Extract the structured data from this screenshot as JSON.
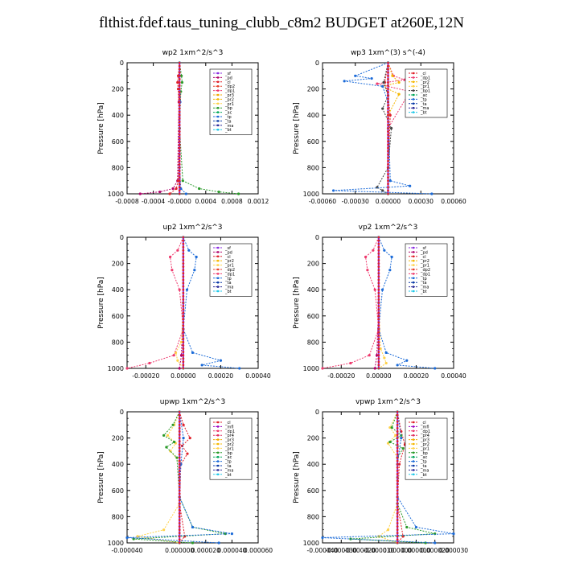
{
  "page": {
    "title": "flthist.fdef.taus_tuning_clubb_c8m2  BUDGET at260E,12N"
  },
  "colors": {
    "_sf": "#8a2be2",
    "_pd": "#b0006a",
    "_cl": "#e0202a",
    "_dp2": "#e8402a",
    "_dp1": "#ee3a6e",
    "_pr3": "#f2a800",
    "_pr2": "#f5b800",
    "_pr1": "#ffd24a",
    "_bp": "#2a9a2a",
    "_ac": "#00a85a",
    "_tp": "#1a6ad8",
    "_ta": "#0a3aa8",
    "_ma": "#2a2a9a",
    "_bt": "#20c8e8",
    "_mfl": "#9a00c0",
    "_pr4": "#e03060"
  },
  "chart_data": [
    {
      "type": "line",
      "title": "wp2  1xm^2/s^3",
      "ylabel": "Pressure  [hPa]",
      "ylim": [
        1000,
        0
      ],
      "y_ticks": [
        "0",
        "200",
        "400",
        "600",
        "800",
        "1000"
      ],
      "x_tick_labels": [
        "-0.0008",
        "-0.0004",
        "-0.0000",
        "0.0004",
        "0.0008",
        "0.0012"
      ],
      "xlim": [
        -0.0008,
        0.0012
      ],
      "x_ticks": [
        -0.0008,
        -0.0004,
        0.0,
        0.0004,
        0.0008,
        0.0012
      ],
      "legend": [
        "_sf",
        "_pd",
        "_cl",
        "_dp2",
        "_dp1",
        "_pr3",
        "_pr2",
        "_pr1",
        "_bp",
        "_ac",
        "_tp",
        "_ta",
        "_ma",
        "_bt"
      ],
      "series": [
        {
          "name": "_pd",
          "x": [
            0,
            -1e-05,
            -3e-05,
            -0.0001,
            -0.0003,
            -0.0006
          ],
          "y": [
            0,
            300,
            900,
            960,
            985,
            1000
          ]
        },
        {
          "name": "_cl",
          "x": [
            0,
            -2e-05,
            -3e-05,
            -2e-05,
            0,
            -2e-05,
            -5e-05,
            -0.00015
          ],
          "y": [
            0,
            100,
            150,
            200,
            500,
            900,
            960,
            1000
          ]
        },
        {
          "name": "_bp",
          "x": [
            0,
            3e-05,
            4e-05,
            2e-05,
            0,
            5e-05,
            0.0003,
            0.0006,
            0.0009
          ],
          "y": [
            0,
            100,
            150,
            220,
            500,
            900,
            960,
            985,
            1000
          ]
        },
        {
          "name": "_tp",
          "x": [
            0,
            1e-05,
            0,
            2e-05,
            0.0001
          ],
          "y": [
            0,
            300,
            800,
            960,
            1000
          ]
        },
        {
          "name": "_bt",
          "x": [
            0,
            0,
            0
          ],
          "y": [
            0,
            500,
            1000
          ]
        }
      ]
    },
    {
      "type": "line",
      "title": "wp3  1xm^(3) s^(-4)",
      "ylabel": "Pressure  [hPa]",
      "ylim": [
        1000,
        0
      ],
      "y_ticks": [
        "0",
        "200",
        "400",
        "600",
        "800",
        "1000"
      ],
      "x_tick_labels": [
        "-0.00060",
        "-0.00030",
        "0.00000",
        "0.00030",
        "0.00060"
      ],
      "xlim": [
        -0.0006,
        0.0006
      ],
      "x_ticks": [
        -0.0006,
        -0.0003,
        0.0,
        0.0003,
        0.0006
      ],
      "legend": [
        "_cl",
        "_dp1",
        "_pr2",
        "_pr1",
        "_bp1",
        "_ac",
        "_tp",
        "_ta",
        "_ma",
        "_bt"
      ],
      "series": [
        {
          "name": "_cl",
          "x": [
            0,
            -3e-05,
            0,
            2e-05,
            0,
            0
          ],
          "y": [
            0,
            150,
            250,
            400,
            800,
            1000
          ]
        },
        {
          "name": "_dp1",
          "x": [
            0,
            5e-05,
            0.00015,
            -0.0001,
            0.0002,
            0,
            0
          ],
          "y": [
            0,
            100,
            130,
            160,
            220,
            500,
            1000
          ]
        },
        {
          "name": "_pr2",
          "x": [
            0,
            4e-05,
            0.0001,
            -5e-05,
            0.0001,
            0,
            0
          ],
          "y": [
            0,
            100,
            150,
            180,
            240,
            400,
            1000
          ]
        },
        {
          "name": "_bp1",
          "x": [
            0,
            -4e-05,
            0,
            -5e-05,
            3e-05,
            0,
            -0.0001,
            -5e-05,
            0
          ],
          "y": [
            0,
            150,
            250,
            350,
            500,
            800,
            950,
            975,
            1000
          ]
        },
        {
          "name": "_tp",
          "x": [
            0,
            -0.0003,
            -0.00015,
            -0.0004,
            -5e-05,
            0,
            2e-05,
            0.0002,
            -0.0005,
            0.0004
          ],
          "y": [
            0,
            100,
            120,
            140,
            180,
            300,
            900,
            940,
            975,
            1000
          ]
        },
        {
          "name": "_bt",
          "x": [
            0,
            0,
            0
          ],
          "y": [
            0,
            500,
            1000
          ]
        }
      ]
    },
    {
      "type": "line",
      "title": "up2  1xm^2/s^3",
      "ylabel": "Pressure  [hPa]",
      "ylim": [
        1000,
        0
      ],
      "y_ticks": [
        "0",
        "200",
        "400",
        "600",
        "800",
        "1000"
      ],
      "x_tick_labels": [
        "-0.00020",
        "0.00000",
        "0.00020",
        "0.00040"
      ],
      "xlim": [
        -0.0003,
        0.0004
      ],
      "x_ticks": [
        -0.0002,
        0.0,
        0.0002,
        0.0004
      ],
      "legend": [
        "_sf",
        "_pd",
        "_cl",
        "_pr2",
        "_pr1",
        "_dp2",
        "_dp1",
        "_tp",
        "_ta",
        "_ma",
        "_bt"
      ],
      "series": [
        {
          "name": "_pd",
          "x": [
            0,
            0,
            -1e-05,
            -2e-05
          ],
          "y": [
            0,
            500,
            900,
            1000
          ]
        },
        {
          "name": "_pr1",
          "x": [
            0,
            0,
            -1e-05,
            -4e-05,
            -3e-05,
            0
          ],
          "y": [
            0,
            500,
            800,
            880,
            940,
            1000
          ]
        },
        {
          "name": "_dp1",
          "x": [
            0,
            -3e-05,
            -7e-05,
            -6e-05,
            -2e-05,
            0,
            -5e-05,
            -0.00018,
            -0.0003
          ],
          "y": [
            0,
            100,
            150,
            250,
            400,
            700,
            900,
            960,
            1000
          ]
        },
        {
          "name": "_tp",
          "x": [
            0,
            3e-05,
            7e-05,
            6e-05,
            2e-05,
            0,
            5e-05,
            0.0002,
            0.0001,
            0.0003
          ],
          "y": [
            0,
            100,
            150,
            250,
            400,
            700,
            880,
            940,
            975,
            1000
          ]
        },
        {
          "name": "_bt",
          "x": [
            0,
            0,
            0
          ],
          "y": [
            0,
            500,
            1000
          ]
        }
      ]
    },
    {
      "type": "line",
      "title": "vp2  1xm^2/s^3",
      "ylabel": "Pressure  [hPa]",
      "ylim": [
        1000,
        0
      ],
      "y_ticks": [
        "0",
        "200",
        "400",
        "600",
        "800",
        "1000"
      ],
      "x_tick_labels": [
        "-0.00020",
        "0.00000",
        "0.00020",
        "0.00040"
      ],
      "xlim": [
        -0.0003,
        0.0004
      ],
      "x_ticks": [
        -0.0002,
        0.0,
        0.0002,
        0.0004
      ],
      "legend": [
        "_sf",
        "_pd",
        "_cl",
        "_pr2",
        "_pr1",
        "_dp2",
        "_dp1",
        "_tp",
        "_ta",
        "_ma",
        "_bt"
      ],
      "series": [
        {
          "name": "_pd",
          "x": [
            0,
            0,
            -1e-05,
            -2e-05
          ],
          "y": [
            0,
            500,
            900,
            1000
          ]
        },
        {
          "name": "_pr1",
          "x": [
            0,
            0,
            1e-05,
            3e-05,
            4e-05,
            0
          ],
          "y": [
            0,
            500,
            850,
            920,
            960,
            1000
          ]
        },
        {
          "name": "_dp1",
          "x": [
            0,
            -3e-05,
            -7e-05,
            -6e-05,
            -2e-05,
            0,
            -5e-05,
            -0.00015,
            -0.0003
          ],
          "y": [
            0,
            100,
            150,
            250,
            400,
            700,
            900,
            960,
            1000
          ]
        },
        {
          "name": "_tp",
          "x": [
            0,
            3e-05,
            7e-05,
            6e-05,
            2e-05,
            0,
            4e-05,
            0.00015,
            0.0001,
            0.0003
          ],
          "y": [
            0,
            100,
            150,
            250,
            400,
            700,
            880,
            940,
            975,
            1000
          ]
        },
        {
          "name": "_bt",
          "x": [
            0,
            0,
            0
          ],
          "y": [
            0,
            500,
            1000
          ]
        }
      ]
    },
    {
      "type": "line",
      "title": "upwp  1xm^2/s^3",
      "ylabel": "Pressure  [hPa]",
      "ylim": [
        1000,
        0
      ],
      "y_ticks": [
        "0",
        "200",
        "400",
        "600",
        "800",
        "1000"
      ],
      "x_tick_labels": [
        "-0.000040",
        "0.000000",
        "0.000020",
        "0.000040",
        "0.000060"
      ],
      "xlim": [
        -4e-05,
        6e-05
      ],
      "x_ticks": [
        -4e-05,
        0.0,
        2e-05,
        4e-05,
        6e-05
      ],
      "legend": [
        "_cl",
        "_mfl",
        "_dp1",
        "_pr4",
        "_pr3",
        "_pr2",
        "_pr1",
        "_bp",
        "_ac",
        "_tp",
        "_ta",
        "_ma",
        "_bt"
      ],
      "series": [
        {
          "name": "_cl",
          "x": [
            0,
            3e-06,
            8e-06,
            2e-06,
            6e-06,
            1e-06,
            0,
            4e-06,
            0
          ],
          "y": [
            0,
            100,
            200,
            260,
            320,
            400,
            700,
            950,
            1000
          ]
        },
        {
          "name": "_pr1",
          "x": [
            0,
            -4e-06,
            -9e-06,
            -3e-06,
            -7e-06,
            0,
            0,
            -1.2e-05,
            -3.2e-05,
            0
          ],
          "y": [
            0,
            100,
            180,
            240,
            300,
            380,
            700,
            900,
            950,
            1000
          ]
        },
        {
          "name": "_bp",
          "x": [
            0,
            -5e-06,
            -1.2e-05,
            -4e-06,
            -1e-05,
            -2e-06,
            0,
            1e-05,
            3.5e-05,
            -3.5e-05,
            1e-05
          ],
          "y": [
            0,
            100,
            180,
            230,
            270,
            350,
            650,
            880,
            930,
            970,
            1000
          ]
        },
        {
          "name": "_tp",
          "x": [
            0,
            3e-06,
            1e-06,
            0,
            1e-05,
            4e-05,
            -4e-05,
            3e-05
          ],
          "y": [
            0,
            200,
            400,
            650,
            880,
            930,
            960,
            1000
          ]
        },
        {
          "name": "_bt",
          "x": [
            0,
            0,
            0
          ],
          "y": [
            0,
            500,
            1000
          ]
        }
      ]
    },
    {
      "type": "line",
      "title": "vpwp  1xm^2/s^3",
      "ylabel": "Pressure  [hPa]",
      "ylim": [
        1000,
        0
      ],
      "y_ticks": [
        "0",
        "200",
        "400",
        "600",
        "800",
        "1000"
      ],
      "x_tick_labels": [
        "-0.000040",
        "-0.000030",
        "-0.000020",
        "-0.000010",
        "0.000000",
        "0.000010",
        "0.000020",
        "0.000030"
      ],
      "xlim": [
        -4e-05,
        3e-05
      ],
      "x_ticks": [
        -4e-05,
        -3e-05,
        -2e-05,
        -1e-05,
        0.0,
        1e-05,
        2e-05,
        3e-05
      ],
      "legend": [
        "_cl",
        "_mfl",
        "_dp1",
        "_pr4",
        "_pr3",
        "_pr2",
        "_pr1",
        "_bp",
        "_ac",
        "_tp",
        "_ta",
        "_ma",
        "_bt"
      ],
      "series": [
        {
          "name": "_cl",
          "x": [
            0,
            2e-06,
            4e-06,
            1e-06,
            0,
            3e-06,
            0
          ],
          "y": [
            0,
            150,
            250,
            400,
            700,
            950,
            1000
          ]
        },
        {
          "name": "_pr1",
          "x": [
            0,
            -4e-06,
            -1e-06,
            -5e-06,
            0,
            0,
            -5e-06,
            -1e-05,
            0
          ],
          "y": [
            0,
            120,
            180,
            240,
            350,
            700,
            900,
            950,
            1000
          ]
        },
        {
          "name": "_bp",
          "x": [
            0,
            -3e-06,
            2e-06,
            -4e-06,
            3e-06,
            0,
            0,
            5e-06,
            2e-05,
            -2.5e-05,
            1.5e-05
          ],
          "y": [
            0,
            120,
            180,
            230,
            280,
            350,
            700,
            880,
            930,
            970,
            1000
          ]
        },
        {
          "name": "_tp",
          "x": [
            0,
            2e-06,
            0,
            0,
            1e-05,
            3e-05,
            -4e-05,
            2e-05
          ],
          "y": [
            0,
            200,
            400,
            650,
            880,
            930,
            960,
            1000
          ]
        },
        {
          "name": "_bt",
          "x": [
            0,
            0,
            0
          ],
          "y": [
            0,
            500,
            1000
          ]
        }
      ]
    }
  ]
}
